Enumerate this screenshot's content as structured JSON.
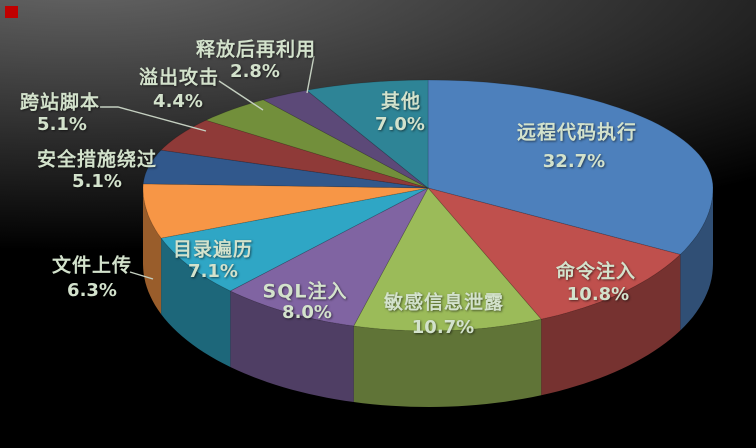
{
  "chart_data": {
    "type": "pie",
    "style": "3d",
    "title": "",
    "legend": "none",
    "unit": "%",
    "direction": "clockwise",
    "start_angle_deg": 0,
    "slices": [
      {
        "label": "远程代码执行",
        "value": 32.7,
        "pct_label": "32.7%",
        "color": "#4D80BC",
        "label_placement": "inside"
      },
      {
        "label": "命令注入",
        "value": 10.8,
        "pct_label": "10.8%",
        "color": "#BF504D",
        "label_placement": "inside"
      },
      {
        "label": "敏感信息泄露",
        "value": 10.7,
        "pct_label": "10.7%",
        "color": "#9BBB59",
        "label_placement": "inside"
      },
      {
        "label": "SQL注入",
        "value": 8.0,
        "pct_label": "8.0%",
        "color": "#8064A2",
        "label_placement": "inside"
      },
      {
        "label": "目录遍历",
        "value": 7.1,
        "pct_label": "7.1%",
        "color": "#2FA6C5",
        "label_placement": "inside"
      },
      {
        "label": "文件上传",
        "value": 6.3,
        "pct_label": "6.3%",
        "color": "#F79646",
        "label_placement": "outside"
      },
      {
        "label": "安全措施绕过",
        "value": 5.1,
        "pct_label": "5.1%",
        "color": "#31588C",
        "label_placement": "outside"
      },
      {
        "label": "跨站脚本",
        "value": 5.1,
        "pct_label": "5.1%",
        "color": "#8F3A38",
        "label_placement": "outside"
      },
      {
        "label": "溢出攻击",
        "value": 4.4,
        "pct_label": "4.4%",
        "color": "#728F3B",
        "label_placement": "outside"
      },
      {
        "label": "释放后再利用",
        "value": 2.8,
        "pct_label": "2.8%",
        "color": "#5C4978",
        "label_placement": "outside"
      },
      {
        "label": "其他",
        "value": 7.0,
        "pct_label": "7.0%",
        "color": "#2E8496",
        "label_placement": "inside"
      }
    ]
  },
  "colors": {
    "label_text": "#D3E2CC",
    "leader_line": "#C4CFC0",
    "red_marker": "#C00000",
    "background_light": "#696969",
    "background_dark": "#000000"
  }
}
